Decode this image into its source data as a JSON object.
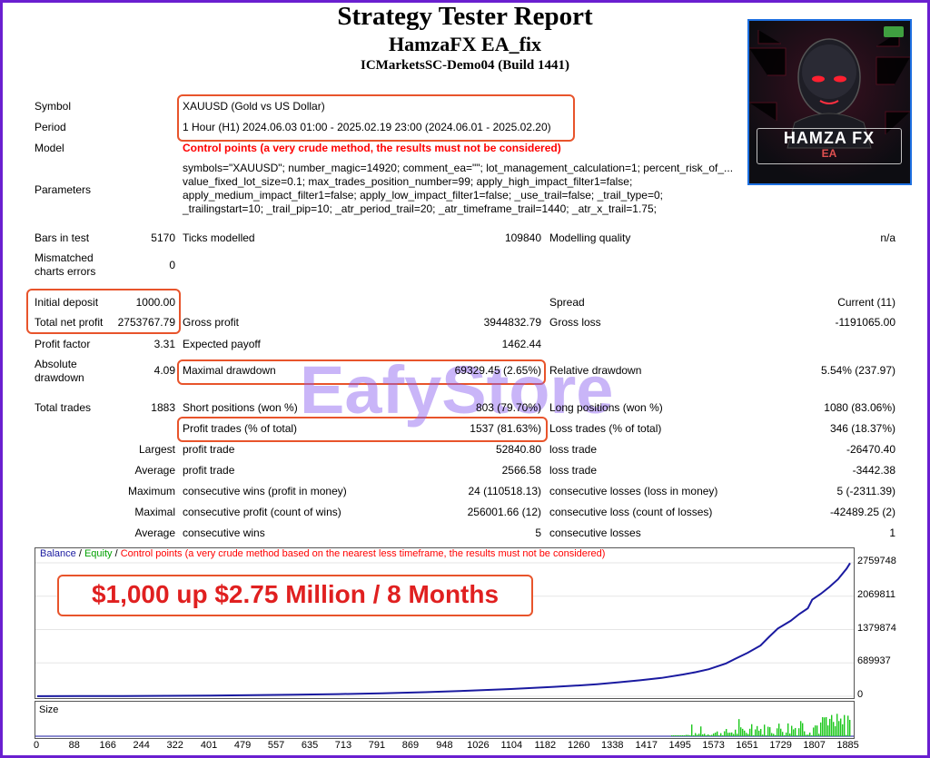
{
  "header": {
    "title": "Strategy Tester Report",
    "ea_name": "HamzaFX EA_fix",
    "server": "ICMarketsSC-Demo04 (Build 1441)"
  },
  "logo": {
    "title": "HAMZA FX",
    "subtitle": "EA"
  },
  "watermark": "EafyStore",
  "settings": {
    "symbol_label": "Symbol",
    "symbol_value": "XAUUSD (Gold vs US Dollar)",
    "period_label": "Period",
    "period_value": "1 Hour (H1) 2024.06.03 01:00 - 2025.02.19 23:00 (2024.06.01 - 2025.02.20)",
    "model_label": "Model",
    "model_value": "Control points (a very crude method, the results must not be considered)",
    "params_label": "Parameters",
    "params_value": "symbols=\"XAUUSD\"; number_magic=14920; comment_ea=\"\"; lot_management_calculation=1; percent_risk_of_... value_fixed_lot_size=0.1; max_trades_position_number=99; apply_high_impact_filter1=false; apply_medium_impact_filter1=false; apply_low_impact_filter1=false; _use_trail=false; _trail_type=0; _trailingstart=10; _trail_pip=10; _atr_period_trail=20; _atr_timeframe_trail=1440; _atr_x_trail=1.75;"
  },
  "stats": {
    "bars_label": "Bars in test",
    "bars_value": "5170",
    "ticks_label": "Ticks modelled",
    "ticks_value": "109840",
    "quality_label": "Modelling quality",
    "quality_value": "n/a",
    "mismatch_label_1": "Mismatched",
    "mismatch_label_2": "charts errors",
    "mismatch_value": "0",
    "deposit_label": "Initial deposit",
    "deposit_value": "1000.00",
    "spread_label": "Spread",
    "spread_value": "Current (11)",
    "netprofit_label": "Total net profit",
    "netprofit_value": "2753767.79",
    "grossprofit_label": "Gross profit",
    "grossprofit_value": "3944832.79",
    "grossloss_label": "Gross loss",
    "grossloss_value": "-1191065.00",
    "pf_label": "Profit factor",
    "pf_value": "3.31",
    "payoff_label": "Expected payoff",
    "payoff_value": "1462.44",
    "absdd_label_1": "Absolute",
    "absdd_label_2": "drawdown",
    "absdd_value": "4.09",
    "maxdd_label": "Maximal drawdown",
    "maxdd_value": "69329.45 (2.65%)",
    "reldd_label": "Relative drawdown",
    "reldd_value": "5.54% (237.97)",
    "trades_label": "Total trades",
    "trades_value": "1883",
    "short_label": "Short positions (won %)",
    "short_value": "803 (79.70%)",
    "long_label": "Long positions (won %)",
    "long_value": "1080 (83.06%)",
    "ptrades_label": "Profit trades (% of total)",
    "ptrades_value": "1537 (81.63%)",
    "ltrades_label": "Loss trades (% of total)",
    "ltrades_value": "346 (18.37%)",
    "largest_label": "Largest",
    "largest_profit_label": "profit trade",
    "largest_profit_value": "52840.80",
    "largest_loss_label": "loss trade",
    "largest_loss_value": "-26470.40",
    "average_label": "Average",
    "average_profit_label": "profit trade",
    "average_profit_value": "2566.58",
    "average_loss_label": "loss trade",
    "average_loss_value": "-3442.38",
    "maximum_label": "Maximum",
    "max_wins_label": "consecutive wins (profit in money)",
    "max_wins_value": "24 (110518.13)",
    "max_losses_label": "consecutive losses (loss in money)",
    "max_losses_value": "5 (-2311.39)",
    "maximal_label": "Maximal",
    "maximal_profit_label": "consecutive profit (count of wins)",
    "maximal_profit_value": "256001.66 (12)",
    "maximal_loss_label": "consecutive loss (count of losses)",
    "maximal_loss_value": "-42489.25 (2)",
    "avgc_label": "Average",
    "avgc_wins_label": "consecutive wins",
    "avgc_wins_value": "5",
    "avgc_losses_label": "consecutive losses",
    "avgc_losses_value": "1"
  },
  "chart_data": {
    "type": "line",
    "legend": {
      "balance": "Balance",
      "sep1": " / ",
      "equity": "Equity",
      "sep2": " / ",
      "points": "Control points (a very crude method based on the nearest less timeframe, the results must not be considered)"
    },
    "banner": "$1,000 up $2.75 Million / 8 Months",
    "size_label": "Size",
    "y_ticks": [
      "2759748",
      "2069811",
      "1379874",
      "689937",
      "0"
    ],
    "y_tick_values": [
      2759748,
      2069811,
      1379874,
      689937,
      0
    ],
    "x_ticks": [
      "0",
      "88",
      "166",
      "244",
      "322",
      "401",
      "479",
      "557",
      "635",
      "713",
      "791",
      "869",
      "948",
      "1026",
      "1104",
      "1182",
      "1260",
      "1338",
      "1417",
      "1495",
      "1573",
      "1651",
      "1729",
      "1807",
      "1885"
    ],
    "x_tick_values": [
      0,
      88,
      166,
      244,
      322,
      401,
      479,
      557,
      635,
      713,
      791,
      869,
      948,
      1026,
      1104,
      1182,
      1260,
      1338,
      1417,
      1495,
      1573,
      1651,
      1729,
      1807,
      1885
    ],
    "xlim": [
      0,
      1888
    ],
    "ylim": [
      0,
      2759748
    ],
    "series": [
      {
        "name": "Balance",
        "color": "#1a1aa0",
        "x": [
          0,
          100,
          200,
          300,
          400,
          500,
          600,
          700,
          800,
          900,
          1000,
          1100,
          1200,
          1250,
          1300,
          1350,
          1400,
          1450,
          1500,
          1530,
          1560,
          1600,
          1620,
          1650,
          1680,
          1700,
          1720,
          1750,
          1770,
          1790,
          1800,
          1820,
          1840,
          1860,
          1880,
          1888
        ],
        "y": [
          1000,
          3000,
          6000,
          10000,
          15000,
          22000,
          32000,
          45000,
          62000,
          85000,
          115000,
          150000,
          195000,
          220000,
          250000,
          290000,
          330000,
          380000,
          450000,
          500000,
          560000,
          680000,
          770000,
          900000,
          1050000,
          1230000,
          1400000,
          1560000,
          1700000,
          1820000,
          2000000,
          2120000,
          2260000,
          2420000,
          2640000,
          2754768
        ]
      }
    ],
    "colors": {
      "balance": "#1a1aa0",
      "equity": "#00a000",
      "points": "#ff0000",
      "size_bars": "#1cc81c"
    }
  }
}
